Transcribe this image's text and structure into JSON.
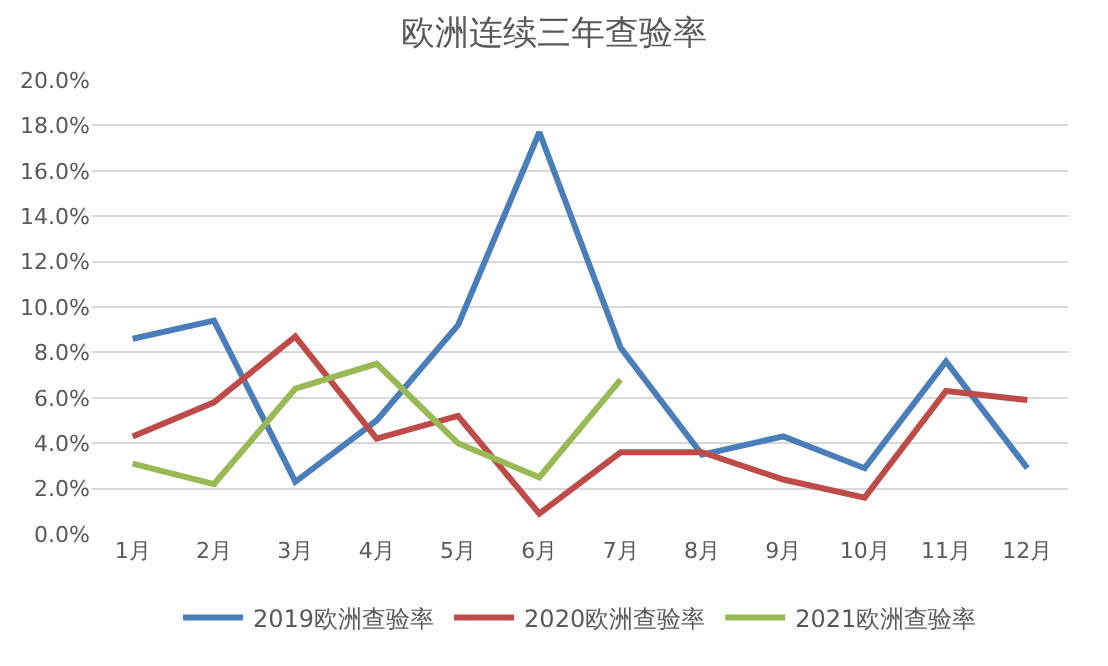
{
  "chart_data": {
    "type": "line",
    "title": "欧洲连续三年查验率",
    "categories": [
      "1月",
      "2月",
      "3月",
      "4月",
      "5月",
      "6月",
      "7月",
      "8月",
      "9月",
      "10月",
      "11月",
      "12月"
    ],
    "series": [
      {
        "name": "2019欧洲查验率",
        "color": "#4a7ebb",
        "values": [
          8.6,
          9.4,
          2.3,
          5.0,
          9.2,
          17.7,
          8.2,
          3.5,
          4.3,
          2.9,
          7.6,
          2.9
        ]
      },
      {
        "name": "2020欧洲查验率",
        "color": "#be4b48",
        "values": [
          4.3,
          5.8,
          8.7,
          4.2,
          5.2,
          0.9,
          3.6,
          3.6,
          2.4,
          1.6,
          6.3,
          5.9
        ]
      },
      {
        "name": "2021欧洲查验率",
        "color": "#98b954",
        "values": [
          3.1,
          2.2,
          6.4,
          7.5,
          4.0,
          2.5,
          6.8,
          null,
          null,
          null,
          null,
          null
        ]
      }
    ],
    "ylim": [
      0,
      20
    ],
    "yticks": [
      {
        "value": 0,
        "label": "0.0%"
      },
      {
        "value": 2,
        "label": "2.0%"
      },
      {
        "value": 4,
        "label": "4.0%"
      },
      {
        "value": 6,
        "label": "6.0%"
      },
      {
        "value": 8,
        "label": "8.0%"
      },
      {
        "value": 10,
        "label": "10.0%"
      },
      {
        "value": 12,
        "label": "12.0%"
      },
      {
        "value": 14,
        "label": "14.0%"
      },
      {
        "value": 16,
        "label": "16.0%"
      },
      {
        "value": 18,
        "label": "18.0%"
      },
      {
        "value": 20,
        "label": "20.0%"
      }
    ],
    "grid": "y",
    "legend": "bottom",
    "marker": "none",
    "line_style": "solid"
  }
}
